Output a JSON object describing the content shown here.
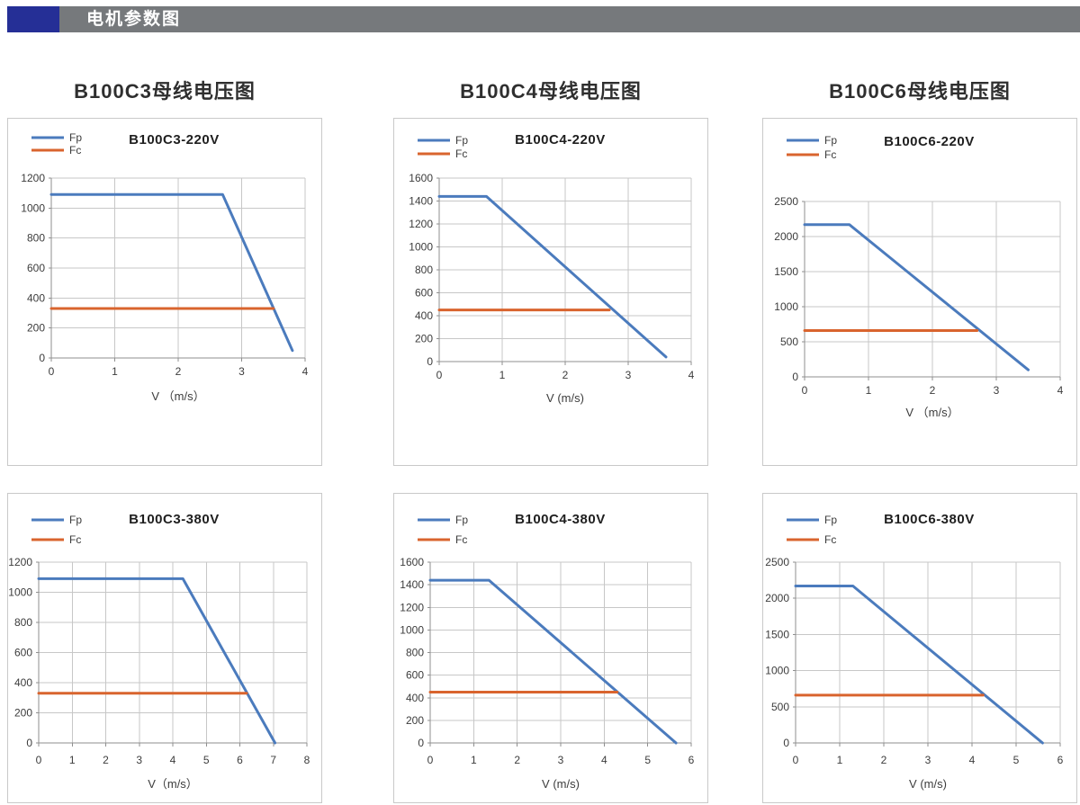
{
  "header": {
    "title": "电机参数图"
  },
  "column_titles": [
    "B100C3母线电压图",
    "B100C4母线电压图",
    "B100C6母线电压图"
  ],
  "colors": {
    "fp_line": "#4b7bbd",
    "fc_line": "#d9642e",
    "grid": "#c7c7c7",
    "axis": "#8f8f8f",
    "header_bar": "#76797c",
    "header_accent": "#252f96"
  },
  "chart_data": [
    {
      "type": "line",
      "title": "B100C3-220V",
      "xlabel": "V （m/s）",
      "xlim": [
        0,
        4
      ],
      "xticks": [
        0,
        1,
        2,
        3,
        4
      ],
      "ylim": [
        0,
        1200
      ],
      "yticks": [
        0,
        200,
        400,
        600,
        800,
        1000,
        1200
      ],
      "legend_position": "top-left",
      "grid": true,
      "series": [
        {
          "name": "Fp",
          "color_key": "fp_line",
          "points": [
            [
              0,
              1090
            ],
            [
              2.7,
              1090
            ],
            [
              3.8,
              50
            ]
          ]
        },
        {
          "name": "Fc",
          "color_key": "fc_line",
          "points": [
            [
              0,
              330
            ],
            [
              3.5,
              330
            ]
          ]
        }
      ]
    },
    {
      "type": "line",
      "title": "B100C4-220V",
      "xlabel": "V (m/s)",
      "xlim": [
        0,
        4
      ],
      "xticks": [
        0,
        1,
        2,
        3,
        4
      ],
      "ylim": [
        0,
        1600
      ],
      "yticks": [
        0,
        200,
        400,
        600,
        800,
        1000,
        1200,
        1400,
        1600
      ],
      "legend_position": "top-left",
      "grid": true,
      "series": [
        {
          "name": "Fp",
          "color_key": "fp_line",
          "points": [
            [
              0,
              1440
            ],
            [
              0.75,
              1440
            ],
            [
              3.6,
              40
            ]
          ]
        },
        {
          "name": "Fc",
          "color_key": "fc_line",
          "points": [
            [
              0,
              450
            ],
            [
              2.7,
              450
            ]
          ]
        }
      ]
    },
    {
      "type": "line",
      "title": "B100C6-220V",
      "xlabel": "V （m/s）",
      "xlim": [
        0,
        4
      ],
      "xticks": [
        0,
        1,
        2,
        3,
        4
      ],
      "ylim": [
        0,
        2500
      ],
      "yticks": [
        0,
        500,
        1000,
        1500,
        2000,
        2500
      ],
      "legend_position": "top-left",
      "grid": true,
      "series": [
        {
          "name": "Fp",
          "color_key": "fp_line",
          "points": [
            [
              0,
              2170
            ],
            [
              0.7,
              2170
            ],
            [
              3.5,
              100
            ]
          ]
        },
        {
          "name": "Fc",
          "color_key": "fc_line",
          "points": [
            [
              0,
              660
            ],
            [
              2.7,
              660
            ]
          ]
        }
      ]
    },
    {
      "type": "line",
      "title": "B100C3-380V",
      "xlabel": "V（m/s）",
      "xlim": [
        0,
        8
      ],
      "xticks": [
        0,
        1,
        2,
        3,
        4,
        5,
        6,
        7,
        8
      ],
      "ylim": [
        0,
        1200
      ],
      "yticks": [
        0,
        200,
        400,
        600,
        800,
        1000,
        1200
      ],
      "legend_position": "top-left",
      "grid": true,
      "series": [
        {
          "name": "Fp",
          "color_key": "fp_line",
          "points": [
            [
              0,
              1090
            ],
            [
              4.3,
              1090
            ],
            [
              7.05,
              0
            ]
          ]
        },
        {
          "name": "Fc",
          "color_key": "fc_line",
          "points": [
            [
              0,
              330
            ],
            [
              6.2,
              330
            ]
          ]
        }
      ]
    },
    {
      "type": "line",
      "title": "B100C4-380V",
      "xlabel": "V (m/s)",
      "xlim": [
        0,
        6
      ],
      "xticks": [
        0,
        1,
        2,
        3,
        4,
        5,
        6
      ],
      "ylim": [
        0,
        1600
      ],
      "yticks": [
        0,
        200,
        400,
        600,
        800,
        1000,
        1200,
        1400,
        1600
      ],
      "legend_position": "top-left",
      "grid": true,
      "series": [
        {
          "name": "Fp",
          "color_key": "fp_line",
          "points": [
            [
              0,
              1440
            ],
            [
              1.35,
              1440
            ],
            [
              5.65,
              0
            ]
          ]
        },
        {
          "name": "Fc",
          "color_key": "fc_line",
          "points": [
            [
              0,
              450
            ],
            [
              4.3,
              450
            ]
          ]
        }
      ]
    },
    {
      "type": "line",
      "title": "B100C6-380V",
      "xlabel": "V (m/s)",
      "xlim": [
        0,
        6
      ],
      "xticks": [
        0,
        1,
        2,
        3,
        4,
        5,
        6
      ],
      "ylim": [
        0,
        2500
      ],
      "yticks": [
        0,
        500,
        1000,
        1500,
        2000,
        2500
      ],
      "legend_position": "top-left",
      "grid": true,
      "series": [
        {
          "name": "Fp",
          "color_key": "fp_line",
          "points": [
            [
              0,
              2170
            ],
            [
              1.3,
              2170
            ],
            [
              5.6,
              0
            ]
          ]
        },
        {
          "name": "Fc",
          "color_key": "fc_line",
          "points": [
            [
              0,
              660
            ],
            [
              4.25,
              660
            ]
          ]
        }
      ]
    }
  ]
}
